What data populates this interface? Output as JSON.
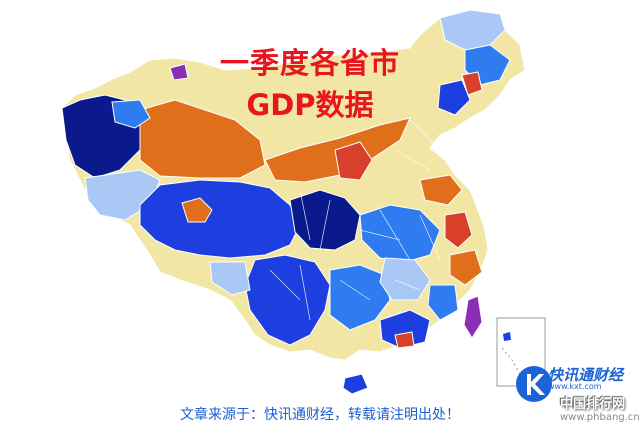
{
  "title": {
    "line1": "一季度各省市",
    "line2": "GDP数据"
  },
  "caption": "文章来源于：快讯通财经，转载请注明出处！",
  "logo": {
    "name": "快讯通财经",
    "url": "www.kxt.com",
    "icon": "k-logo-icon"
  },
  "watermark": {
    "line1": "中国排行网",
    "line2": "www.phbang.cn"
  },
  "colors": {
    "title": "#e8141e",
    "caption": "#1a5fd1",
    "dark_blue": "#0a1a8c",
    "blue": "#1e3fe0",
    "mid_blue": "#2f7bf0",
    "light_blue": "#a9c8f5",
    "cream": "#f2e6a4",
    "orange": "#e06f1c",
    "red": "#d9402b",
    "purple": "#8a2fb3"
  }
}
